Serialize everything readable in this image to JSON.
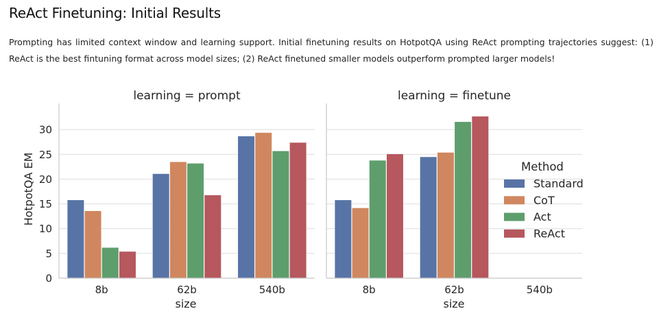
{
  "page": {
    "title": "ReAct Finetuning: Initial Results",
    "description": "Prompting has limited context window and learning support. Initial finetuning results on HotpotQA using ReAct prompting trajectories suggest: (1) ReAct is the best fintuning format across model sizes; (2) ReAct finetuned smaller models outperform prompted larger models!"
  },
  "chart_data": {
    "type": "bar",
    "ylabel": "HotpotQA EM",
    "xlabel": "size",
    "ylim": [
      0,
      35
    ],
    "yticks": [
      0,
      5,
      10,
      15,
      20,
      25,
      30
    ],
    "grid": true,
    "categories": [
      "8b",
      "62b",
      "540b"
    ],
    "legend": {
      "title": "Method",
      "placement": "right",
      "entries": [
        {
          "name": "Standard",
          "color": "#5874a6"
        },
        {
          "name": "CoT",
          "color": "#d0875f"
        },
        {
          "name": "Act",
          "color": "#5e9e6c"
        },
        {
          "name": "ReAct",
          "color": "#b6585e"
        }
      ]
    },
    "panels": [
      {
        "title": "learning = prompt",
        "series": [
          {
            "name": "Standard",
            "values": [
              15.8,
              21.1,
              28.7
            ]
          },
          {
            "name": "CoT",
            "values": [
              13.6,
              23.5,
              29.4
            ]
          },
          {
            "name": "Act",
            "values": [
              6.2,
              23.2,
              25.7
            ]
          },
          {
            "name": "ReAct",
            "values": [
              5.4,
              16.8,
              27.4
            ]
          }
        ]
      },
      {
        "title": "learning = finetune",
        "series": [
          {
            "name": "Standard",
            "values": [
              15.8,
              24.5,
              null
            ]
          },
          {
            "name": "CoT",
            "values": [
              14.2,
              25.4,
              null
            ]
          },
          {
            "name": "Act",
            "values": [
              23.8,
              31.6,
              null
            ]
          },
          {
            "name": "ReAct",
            "values": [
              25.1,
              32.7,
              null
            ]
          }
        ]
      }
    ]
  }
}
